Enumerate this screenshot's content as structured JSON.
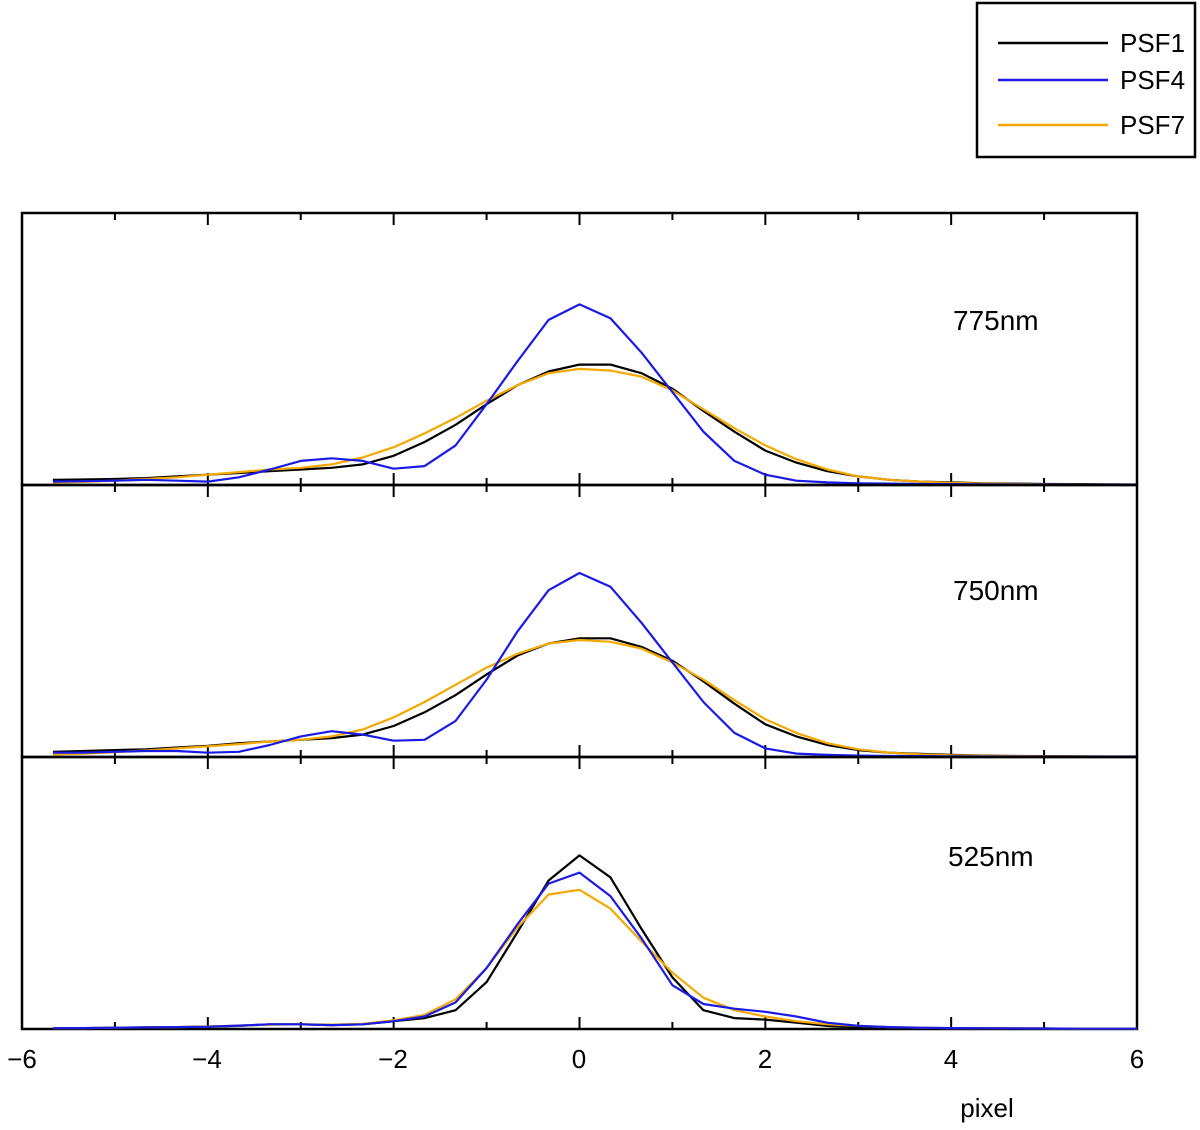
{
  "chart_data": {
    "type": "line",
    "xlabel": "pixel",
    "xlim": [
      -6,
      6
    ],
    "xticks": [
      -6,
      -4,
      -2,
      0,
      2,
      4,
      6
    ],
    "x": [
      -5.667,
      -5.333,
      -5.0,
      -4.667,
      -4.333,
      -4.0,
      -3.667,
      -3.333,
      -3.0,
      -2.667,
      -2.333,
      -2.0,
      -1.667,
      -1.333,
      -1.0,
      -0.667,
      -0.333,
      0.0,
      0.333,
      0.667,
      1.0,
      1.333,
      1.667,
      2.0,
      2.333,
      2.667,
      3.0,
      3.333,
      3.667,
      4.0,
      4.333,
      4.667,
      5.0,
      5.333,
      5.667,
      6.0
    ],
    "legend": [
      {
        "name": "PSF1",
        "color": "#000000"
      },
      {
        "name": "PSF4",
        "color": "#1a1ae6"
      },
      {
        "name": "PSF7",
        "color": "#f5a800"
      }
    ],
    "panels": [
      {
        "label": "775nm",
        "ylim": [
          0,
          1.0
        ],
        "series": [
          {
            "name": "PSF1",
            "values": [
              0.03,
              0.032,
              0.035,
              0.04,
              0.05,
              0.06,
              0.07,
              0.08,
              0.09,
              0.1,
              0.12,
              0.17,
              0.25,
              0.35,
              0.47,
              0.58,
              0.66,
              0.7,
              0.7,
              0.65,
              0.56,
              0.43,
              0.31,
              0.2,
              0.13,
              0.08,
              0.05,
              0.03,
              0.02,
              0.015,
              0.01,
              0.008,
              0.006,
              0.005,
              0.004,
              0.003
            ]
          },
          {
            "name": "PSF4",
            "values": [
              0.02,
              0.022,
              0.025,
              0.03,
              0.025,
              0.02,
              0.045,
              0.09,
              0.14,
              0.155,
              0.14,
              0.095,
              0.11,
              0.23,
              0.47,
              0.72,
              0.96,
              1.05,
              0.97,
              0.77,
              0.54,
              0.31,
              0.14,
              0.06,
              0.025,
              0.015,
              0.01,
              0.008,
              0.006,
              0.005,
              0.004,
              0.003,
              0.003,
              0.002,
              0.002,
              0.002
            ]
          },
          {
            "name": "PSF7",
            "values": [
              0.015,
              0.018,
              0.025,
              0.035,
              0.045,
              0.06,
              0.075,
              0.09,
              0.1,
              0.12,
              0.16,
              0.22,
              0.3,
              0.39,
              0.49,
              0.58,
              0.65,
              0.675,
              0.665,
              0.63,
              0.55,
              0.44,
              0.33,
              0.23,
              0.15,
              0.09,
              0.05,
              0.03,
              0.02,
              0.012,
              0.008,
              0.006,
              0.004,
              0.003,
              0.002,
              0.002
            ]
          }
        ]
      },
      {
        "label": "750nm",
        "ylim": [
          0,
          1.0
        ],
        "series": [
          {
            "name": "PSF1",
            "values": [
              0.03,
              0.035,
              0.04,
              0.045,
              0.055,
              0.065,
              0.08,
              0.09,
              0.1,
              0.11,
              0.13,
              0.18,
              0.26,
              0.36,
              0.48,
              0.59,
              0.66,
              0.69,
              0.69,
              0.64,
              0.56,
              0.44,
              0.31,
              0.19,
              0.12,
              0.07,
              0.04,
              0.025,
              0.018,
              0.012,
              0.008,
              0.006,
              0.005,
              0.004,
              0.003,
              0.003
            ]
          },
          {
            "name": "PSF4",
            "values": [
              0.025,
              0.025,
              0.03,
              0.035,
              0.035,
              0.025,
              0.03,
              0.07,
              0.12,
              0.15,
              0.13,
              0.095,
              0.1,
              0.21,
              0.45,
              0.73,
              0.97,
              1.07,
              0.99,
              0.78,
              0.55,
              0.32,
              0.14,
              0.05,
              0.02,
              0.012,
              0.008,
              0.006,
              0.005,
              0.004,
              0.003,
              0.003,
              0.002,
              0.002,
              0.002,
              0.002
            ]
          },
          {
            "name": "PSF7",
            "values": [
              0.015,
              0.02,
              0.028,
              0.038,
              0.05,
              0.062,
              0.075,
              0.09,
              0.1,
              0.12,
              0.16,
              0.23,
              0.32,
              0.42,
              0.52,
              0.6,
              0.66,
              0.68,
              0.67,
              0.63,
              0.55,
              0.45,
              0.33,
              0.22,
              0.14,
              0.08,
              0.045,
              0.025,
              0.015,
              0.01,
              0.007,
              0.005,
              0.004,
              0.003,
              0.002,
              0.002
            ]
          }
        ]
      },
      {
        "label": "525nm",
        "ylim": [
          0,
          1.1
        ],
        "series": [
          {
            "name": "PSF1",
            "values": [
              0.005,
              0.006,
              0.008,
              0.01,
              0.012,
              0.015,
              0.02,
              0.03,
              0.03,
              0.025,
              0.03,
              0.05,
              0.07,
              0.12,
              0.3,
              0.62,
              0.95,
              1.11,
              0.97,
              0.64,
              0.33,
              0.12,
              0.07,
              0.06,
              0.04,
              0.02,
              0.01,
              0.008,
              0.006,
              0.005,
              0.004,
              0.003,
              0.003,
              0.002,
              0.002,
              0.002
            ]
          },
          {
            "name": "PSF4",
            "values": [
              0.005,
              0.006,
              0.008,
              0.01,
              0.012,
              0.015,
              0.022,
              0.03,
              0.03,
              0.025,
              0.03,
              0.05,
              0.08,
              0.17,
              0.39,
              0.67,
              0.93,
              1.0,
              0.85,
              0.58,
              0.28,
              0.16,
              0.13,
              0.11,
              0.08,
              0.04,
              0.02,
              0.012,
              0.008,
              0.006,
              0.005,
              0.004,
              0.003,
              0.002,
              0.002,
              0.002
            ]
          },
          {
            "name": "PSF7",
            "values": [
              0.005,
              0.006,
              0.008,
              0.01,
              0.012,
              0.016,
              0.022,
              0.028,
              0.03,
              0.028,
              0.033,
              0.055,
              0.09,
              0.19,
              0.39,
              0.65,
              0.86,
              0.89,
              0.77,
              0.56,
              0.36,
              0.2,
              0.12,
              0.08,
              0.05,
              0.03,
              0.02,
              0.012,
              0.008,
              0.006,
              0.005,
              0.004,
              0.003,
              0.002,
              0.002,
              0.002
            ]
          }
        ]
      }
    ]
  }
}
